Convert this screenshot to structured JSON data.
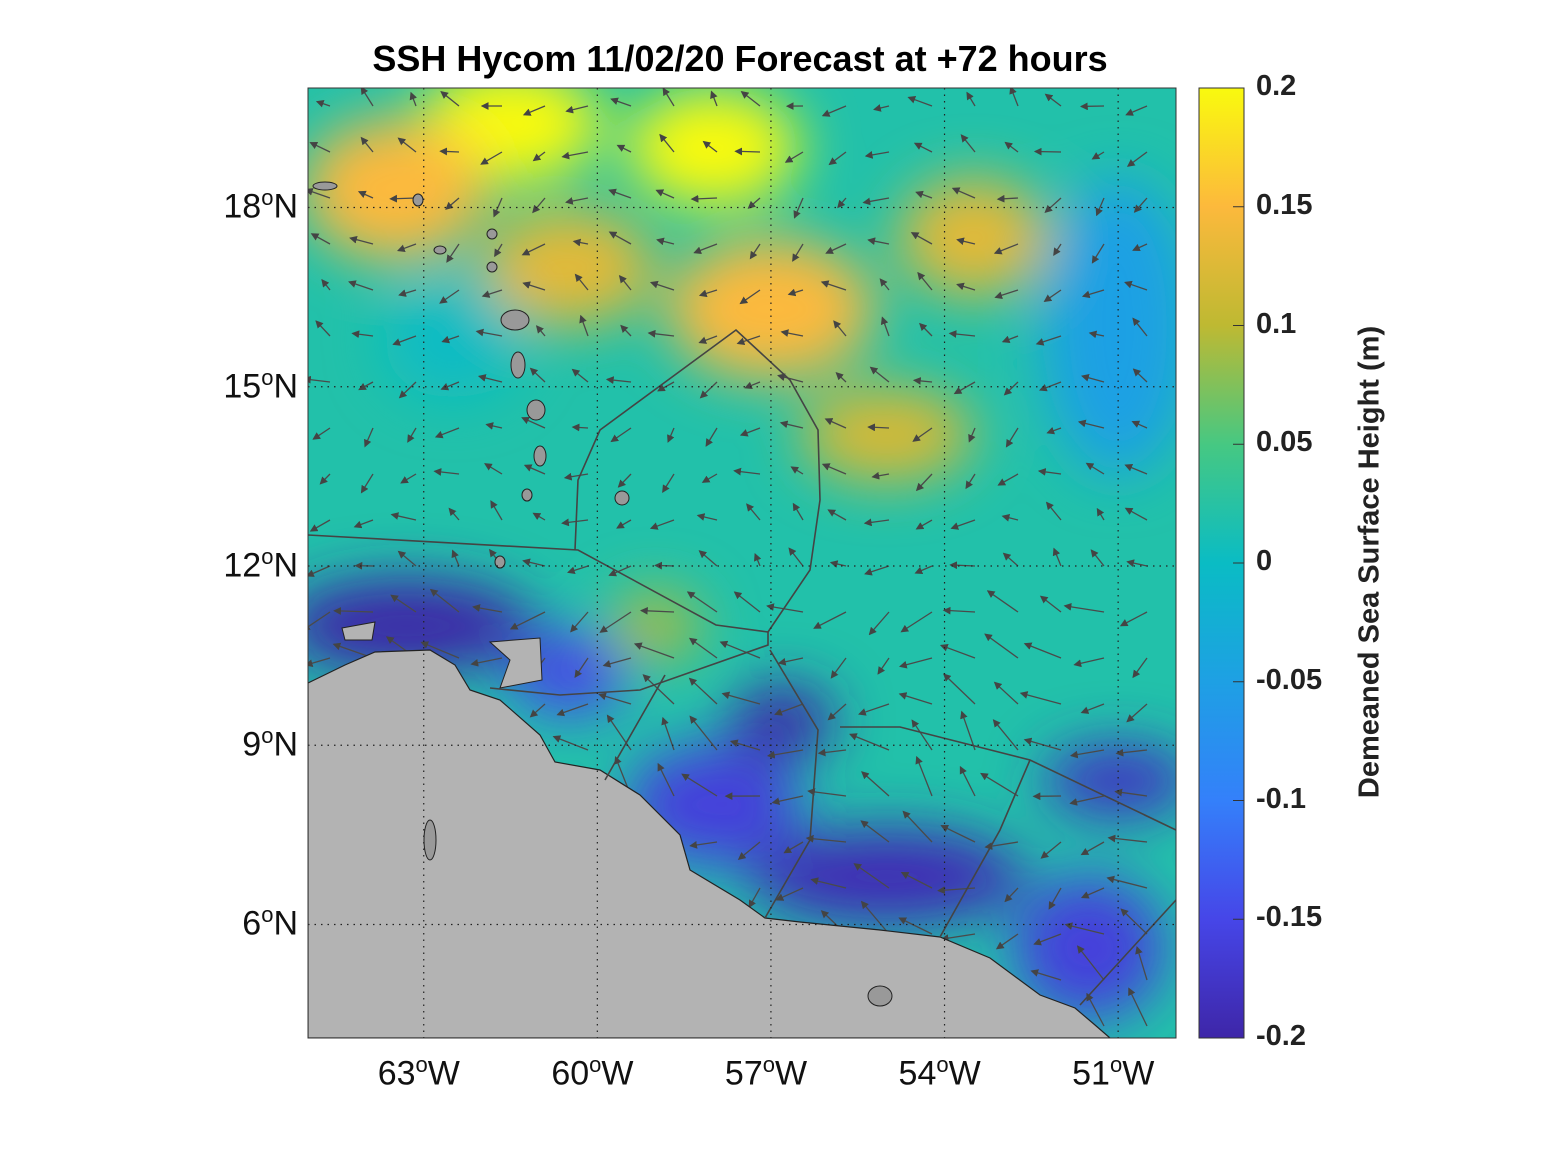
{
  "chart_data": {
    "type": "heatmap",
    "title": "SSH Hycom 11/02/20 Forecast at +72 hours",
    "xlim": [
      -65,
      -50
    ],
    "ylim": [
      4.1,
      20
    ],
    "x_ticks": [
      {
        "value": -63,
        "label": "63",
        "suffix": "W"
      },
      {
        "value": -60,
        "label": "60",
        "suffix": "W"
      },
      {
        "value": -57,
        "label": "57",
        "suffix": "W"
      },
      {
        "value": -54,
        "label": "54",
        "suffix": "W"
      },
      {
        "value": -51,
        "label": "51",
        "suffix": "W"
      }
    ],
    "y_ticks": [
      {
        "value": 18,
        "label": "18",
        "suffix": "N"
      },
      {
        "value": 15,
        "label": "15",
        "suffix": "N"
      },
      {
        "value": 12,
        "label": "12",
        "suffix": "N"
      },
      {
        "value": 9,
        "label": "9",
        "suffix": "N"
      },
      {
        "value": 6,
        "label": "6",
        "suffix": "N"
      }
    ],
    "grid": true,
    "colorbar": {
      "label": "Demeaned Sea Surface Height (m)",
      "range": [
        -0.2,
        0.2
      ],
      "ticks": [
        "0.2",
        "0.15",
        "0.1",
        "0.05",
        "0",
        "-0.05",
        "-0.1",
        "-0.15",
        "-0.2"
      ],
      "tick_values": [
        0.2,
        0.15,
        0.1,
        0.05,
        0,
        -0.05,
        -0.1,
        -0.15,
        -0.2
      ],
      "colormap": "parula"
    },
    "background_value": 0.02,
    "ssh_features": [
      {
        "lon": -61.5,
        "lat": 19.4,
        "value": 0.2,
        "rlon": 1.6,
        "rlat": 1.0
      },
      {
        "lon": -58.0,
        "lat": 19.0,
        "value": 0.2,
        "rlon": 1.5,
        "rlat": 1.0
      },
      {
        "lon": -63.5,
        "lat": 18.3,
        "value": 0.15,
        "rlon": 1.6,
        "rlat": 1.2
      },
      {
        "lon": -60.5,
        "lat": 17.0,
        "value": 0.13,
        "rlon": 1.5,
        "rlat": 1.0
      },
      {
        "lon": -57.0,
        "lat": 16.3,
        "value": 0.15,
        "rlon": 1.8,
        "rlat": 1.2
      },
      {
        "lon": -53.5,
        "lat": 17.5,
        "value": 0.13,
        "rlon": 1.3,
        "rlat": 1.0
      },
      {
        "lon": -55.0,
        "lat": 14.2,
        "value": 0.12,
        "rlon": 1.5,
        "rlat": 0.8
      },
      {
        "lon": -59.0,
        "lat": 11.0,
        "value": 0.09,
        "rlon": 0.8,
        "rlat": 0.6
      },
      {
        "lon": -51.0,
        "lat": 16.0,
        "value": -0.05,
        "rlon": 1.3,
        "rlat": 2.5
      },
      {
        "lon": -62.5,
        "lat": 15.8,
        "value": 0.0,
        "rlon": 1.2,
        "rlat": 1.0
      },
      {
        "lon": -63.3,
        "lat": 11.0,
        "value": -0.2,
        "rlon": 2.2,
        "rlat": 0.8
      },
      {
        "lon": -60.5,
        "lat": 10.2,
        "value": -0.15,
        "rlon": 1.0,
        "rlat": 0.7
      },
      {
        "lon": -56.8,
        "lat": 9.4,
        "value": -0.2,
        "rlon": 0.9,
        "rlat": 0.6
      },
      {
        "lon": -58.0,
        "lat": 8.0,
        "value": -0.16,
        "rlon": 1.5,
        "rlat": 1.0
      },
      {
        "lon": -55.0,
        "lat": 6.8,
        "value": -0.19,
        "rlon": 2.4,
        "rlat": 0.8
      },
      {
        "lon": -51.0,
        "lat": 8.4,
        "value": -0.18,
        "rlon": 1.3,
        "rlat": 0.6
      },
      {
        "lon": -51.5,
        "lat": 5.6,
        "value": -0.16,
        "rlon": 1.3,
        "rlat": 1.2
      }
    ]
  }
}
